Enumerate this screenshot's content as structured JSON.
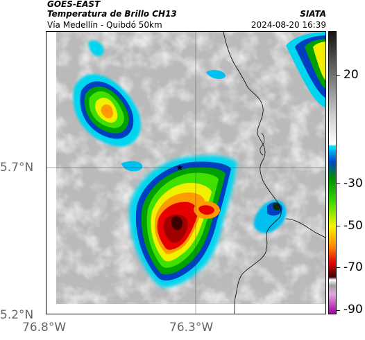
{
  "header": {
    "satellite": "GOES-EAST",
    "product": "Temperatura de Brillo CH13",
    "region": "Vía Medellín - Quibdó 50km",
    "source": "SIATA",
    "datetime": "2024-08-20 16:39"
  },
  "map": {
    "lat_labels": [
      "5.7°N",
      "5.2°N"
    ],
    "lon_labels": [
      "76.8°W",
      "76.3°W"
    ],
    "marker_icon": "star-icon",
    "features": [
      "cloud-top-temperature-field",
      "department-borders",
      "lat-lon-gridlines"
    ]
  },
  "colorbar": {
    "tick_labels": [
      "20",
      "-30",
      "-50",
      "-70",
      "-90"
    ],
    "colors": {
      "warm_top": "#141414",
      "gray_mid": "#bdbdbd",
      "white": "#ffffff",
      "cyan": "#00e5ff",
      "blue": "#0046c8",
      "green": "#39d600",
      "yellow": "#f5f500",
      "orange": "#ff8a00",
      "red": "#e60000",
      "dark_red": "#3c0000",
      "magenta": "#a000a0"
    }
  }
}
